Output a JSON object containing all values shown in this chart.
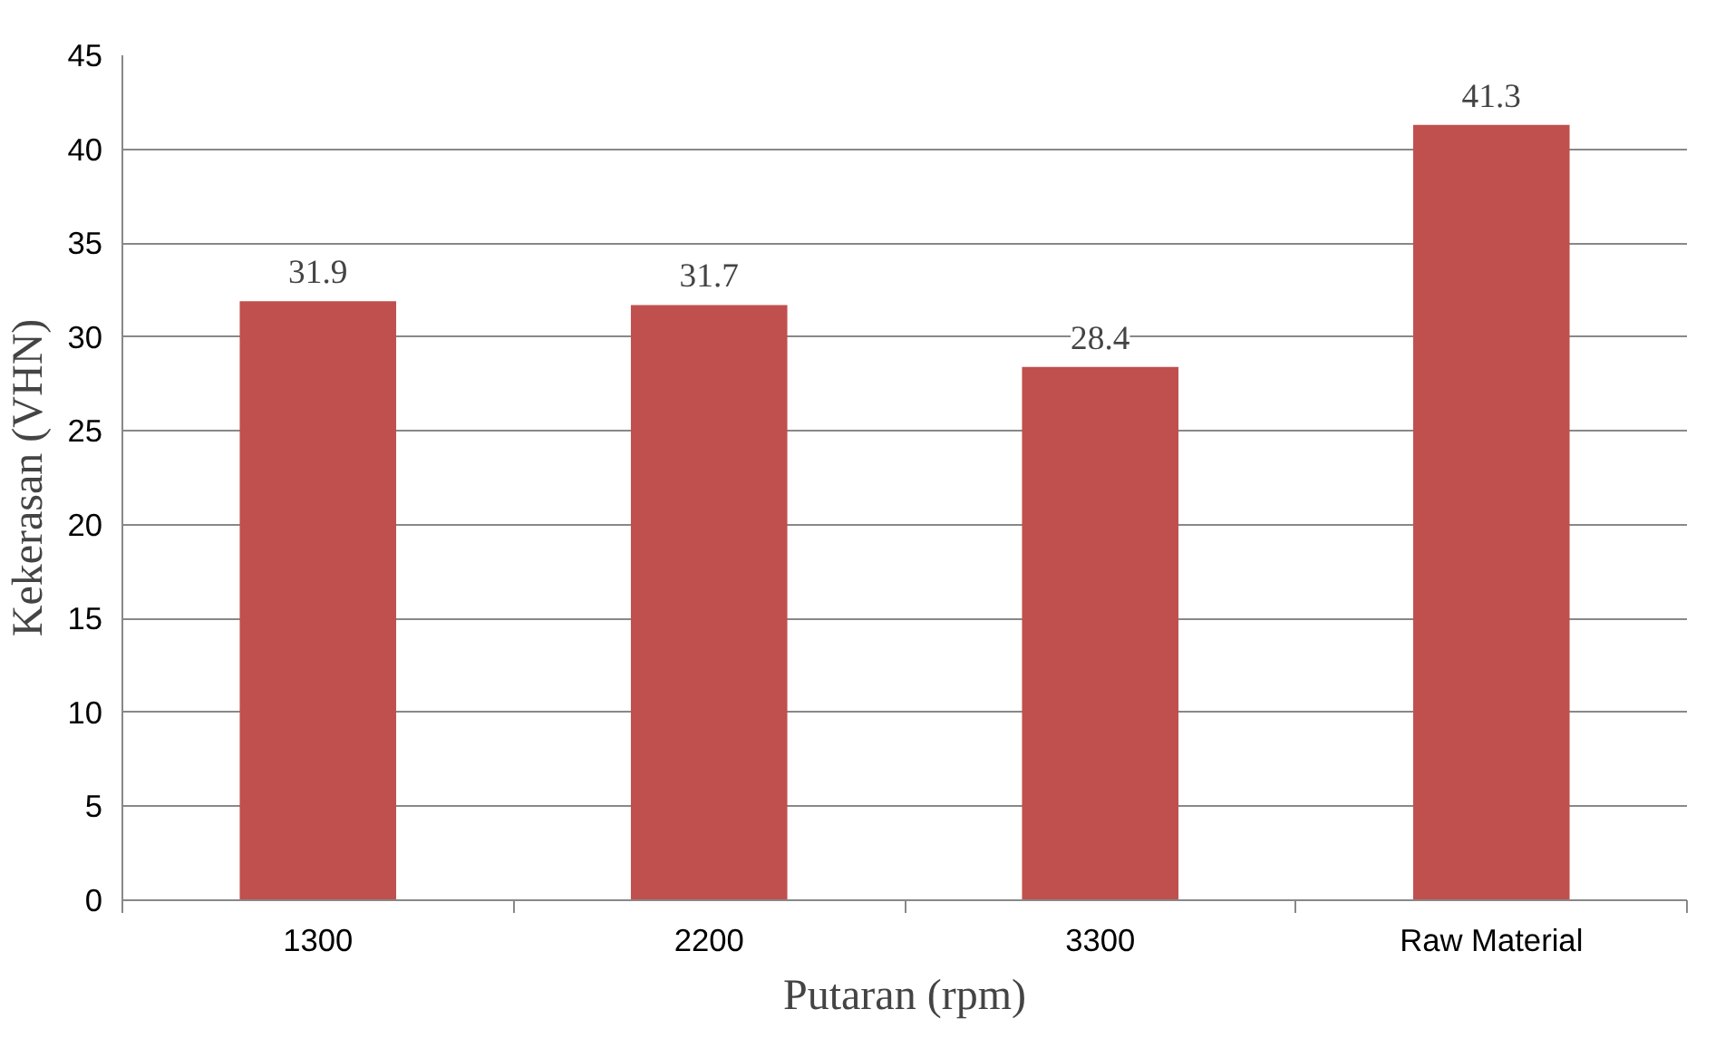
{
  "chart_data": {
    "type": "bar",
    "xlabel": "Putaran (rpm)",
    "ylabel": "Kekerasan (VHN)",
    "categories": [
      "1300",
      "2200",
      "3300",
      "Raw Material"
    ],
    "values": [
      31.9,
      31.7,
      28.4,
      41.3
    ],
    "color": "#c0504d",
    "ylim": [
      0,
      45
    ],
    "yticks": [
      0,
      5,
      10,
      15,
      20,
      25,
      30,
      35,
      40,
      45
    ],
    "grid": "y",
    "data_labels": true
  }
}
